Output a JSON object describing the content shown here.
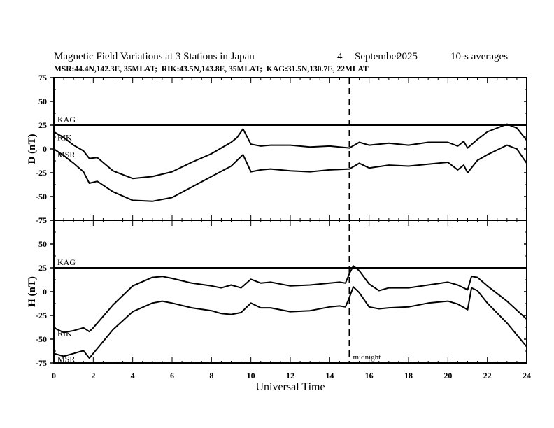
{
  "chart_data": {
    "type": "line",
    "title": {
      "main": "Magnetic Field Variations at 3 Stations in Japan",
      "day": "4",
      "month": "September",
      "year": "2025",
      "averaging": "10-s averages"
    },
    "subtitle": "MSR:44.4N,142.3E, 35MLAT;  RIK:43.5N,143.8E, 35MLAT;  KAG:31.5N,130.7E, 22MLAT",
    "xlabel": "Universal Time",
    "xlim": [
      0,
      24
    ],
    "xticks": [
      "0",
      "2",
      "4",
      "6",
      "8",
      "10",
      "12",
      "14",
      "16",
      "18",
      "20",
      "22",
      "24"
    ],
    "midnight_marker": {
      "x": 15,
      "label": "midnight"
    },
    "grid": false,
    "panels": [
      {
        "id": "D",
        "ylabel": "D (nT)",
        "ylim": [
          -75,
          75
        ],
        "yticks": [
          "75",
          "50",
          "25",
          "0",
          "-25",
          "-50",
          "-75"
        ],
        "series": [
          {
            "name": "KAG",
            "label": "KAG",
            "x": [
              0,
              24
            ],
            "y": [
              25,
              25
            ]
          },
          {
            "name": "RIK",
            "label": "RIK",
            "x": [
              0,
              0.5,
              1,
              1.5,
              1.8,
              2.2,
              3,
              4,
              5,
              6,
              7,
              8,
              9,
              9.3,
              9.6,
              10,
              10.5,
              11,
              12,
              13,
              14,
              15,
              15.5,
              16,
              17,
              18,
              19,
              20,
              20.5,
              20.8,
              21,
              21.5,
              22,
              23,
              23.5,
              24
            ],
            "y": [
              18,
              12,
              4,
              -2,
              -10,
              -9,
              -23,
              -31,
              -29,
              -24,
              -14,
              -5,
              7,
              12,
              21,
              5,
              3,
              4,
              4,
              2,
              3,
              1,
              7,
              4,
              6,
              4,
              7,
              7,
              3,
              8,
              1,
              10,
              18,
              26,
              22,
              9
            ]
          },
          {
            "name": "MSR",
            "label": "MSR",
            "x": [
              0,
              0.5,
              1,
              1.5,
              1.8,
              2.2,
              3,
              4,
              5,
              6,
              7,
              8,
              9,
              9.3,
              9.6,
              10,
              10.5,
              11,
              12,
              13,
              14,
              15,
              15.5,
              16,
              17,
              18,
              19,
              20,
              20.5,
              20.8,
              21,
              21.5,
              22,
              23,
              23.5,
              24
            ],
            "y": [
              0,
              -7,
              -15,
              -24,
              -36,
              -34,
              -45,
              -54,
              -55,
              -51,
              -40,
              -29,
              -18,
              -12,
              -6,
              -24,
              -22,
              -21,
              -23,
              -24,
              -22,
              -21,
              -15,
              -20,
              -17,
              -18,
              -16,
              -14,
              -22,
              -17,
              -25,
              -12,
              -6,
              4,
              0,
              -15
            ]
          }
        ]
      },
      {
        "id": "H",
        "ylabel": "H (nT)",
        "ylim": [
          -75,
          75
        ],
        "yticks": [
          "75",
          "50",
          "25",
          "0",
          "-25",
          "-50",
          "-75"
        ],
        "series": [
          {
            "name": "KAG",
            "label": "KAG",
            "x": [
              0,
              24
            ],
            "y": [
              25,
              25
            ]
          },
          {
            "name": "RIK",
            "label": "RIK",
            "x": [
              0,
              0.5,
              1,
              1.5,
              1.8,
              2,
              3,
              4,
              5,
              5.5,
              6,
              7,
              8,
              8.5,
              9,
              9.5,
              10,
              10.5,
              11,
              12,
              13,
              14,
              14.5,
              14.8,
              15,
              15.2,
              15.5,
              16,
              16.5,
              17,
              18,
              19,
              20,
              20.5,
              21,
              21.2,
              21.5,
              22,
              23,
              24
            ],
            "y": [
              -38,
              -43,
              -41,
              -38,
              -42,
              -38,
              -14,
              6,
              15,
              16,
              14,
              9,
              6,
              4,
              7,
              4,
              13,
              9,
              10,
              6,
              7,
              9,
              10,
              9,
              19,
              27,
              22,
              8,
              1,
              4,
              4,
              7,
              10,
              7,
              2,
              16,
              15,
              6,
              -10,
              -29
            ]
          },
          {
            "name": "MSR",
            "label": "MSR",
            "x": [
              0,
              0.5,
              1,
              1.5,
              1.8,
              2,
              3,
              4,
              5,
              5.5,
              6,
              7,
              8,
              8.5,
              9,
              9.5,
              10,
              10.5,
              11,
              12,
              13,
              14,
              14.5,
              14.8,
              15,
              15.2,
              15.5,
              16,
              16.5,
              17,
              18,
              19,
              20,
              20.5,
              21,
              21.2,
              21.5,
              22,
              23,
              24
            ],
            "y": [
              -65,
              -68,
              -65,
              -62,
              -70,
              -65,
              -40,
              -21,
              -12,
              -10,
              -12,
              -17,
              -20,
              -23,
              -24,
              -22,
              -12,
              -17,
              -17,
              -21,
              -20,
              -16,
              -15,
              -16,
              -6,
              5,
              -1,
              -16,
              -18,
              -17,
              -16,
              -12,
              -10,
              -13,
              -19,
              4,
              1,
              -12,
              -33,
              -58
            ]
          }
        ]
      }
    ]
  }
}
